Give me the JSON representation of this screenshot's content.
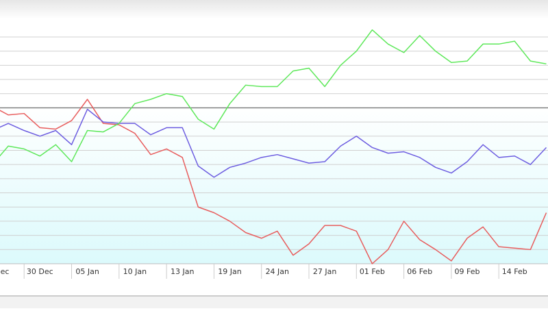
{
  "chart_data": {
    "type": "line",
    "categories": [
      "ec",
      null,
      null,
      "30 Dec",
      null,
      null,
      "05 Jan",
      null,
      null,
      "10 Jan",
      null,
      null,
      "13 Jan",
      null,
      null,
      "19 Jan",
      null,
      null,
      "24 Jan",
      null,
      null,
      "27 Jan",
      null,
      null,
      "01 Feb",
      null,
      null,
      "06 Feb",
      null,
      null,
      "09 Feb",
      null,
      null,
      "14 Feb",
      null,
      null
    ],
    "series": [
      {
        "color": "#e85c5c",
        "values": [
          11.1,
          10.5,
          10.6,
          9.6,
          9.5,
          10.1,
          11.6,
          9.9,
          9.8,
          9.2,
          7.7,
          8.1,
          7.5,
          4.0,
          3.6,
          3.0,
          2.2,
          1.8,
          2.3,
          0.6,
          1.4,
          2.7,
          2.7,
          2.3,
          0.0,
          1.0,
          3.0,
          1.7,
          1.0,
          0.2,
          1.8,
          2.6,
          1.2,
          1.1,
          1.0,
          3.6
        ]
      },
      {
        "color": "#6c5ce0",
        "values": [
          9.4,
          9.9,
          9.4,
          9.0,
          9.4,
          8.4,
          10.9,
          10.0,
          9.9,
          9.9,
          9.1,
          9.6,
          9.6,
          6.9,
          6.1,
          6.8,
          7.1,
          7.5,
          7.7,
          7.4,
          7.1,
          7.2,
          8.3,
          9.0,
          8.2,
          7.8,
          7.9,
          7.5,
          6.8,
          6.4,
          7.2,
          8.4,
          7.5,
          7.6,
          7.0,
          8.2
        ]
      },
      {
        "color": "#5ee85a",
        "values": [
          7.0,
          8.3,
          8.1,
          7.6,
          8.4,
          7.2,
          9.4,
          9.3,
          9.9,
          11.3,
          11.6,
          12.0,
          11.8,
          10.2,
          9.5,
          11.3,
          12.6,
          12.5,
          12.5,
          13.6,
          13.8,
          12.5,
          14.0,
          15.0,
          16.5,
          15.5,
          14.9,
          16.1,
          15.0,
          14.2,
          14.3,
          15.5,
          15.5,
          15.7,
          14.3,
          14.1
        ]
      }
    ],
    "ylim": [
      0,
      17.4
    ],
    "yticks": [
      1,
      2,
      3,
      4,
      5,
      6,
      7,
      8,
      9,
      10,
      11,
      12,
      13,
      14,
      15,
      16
    ],
    "grid": true,
    "highlight_line": 11
  }
}
